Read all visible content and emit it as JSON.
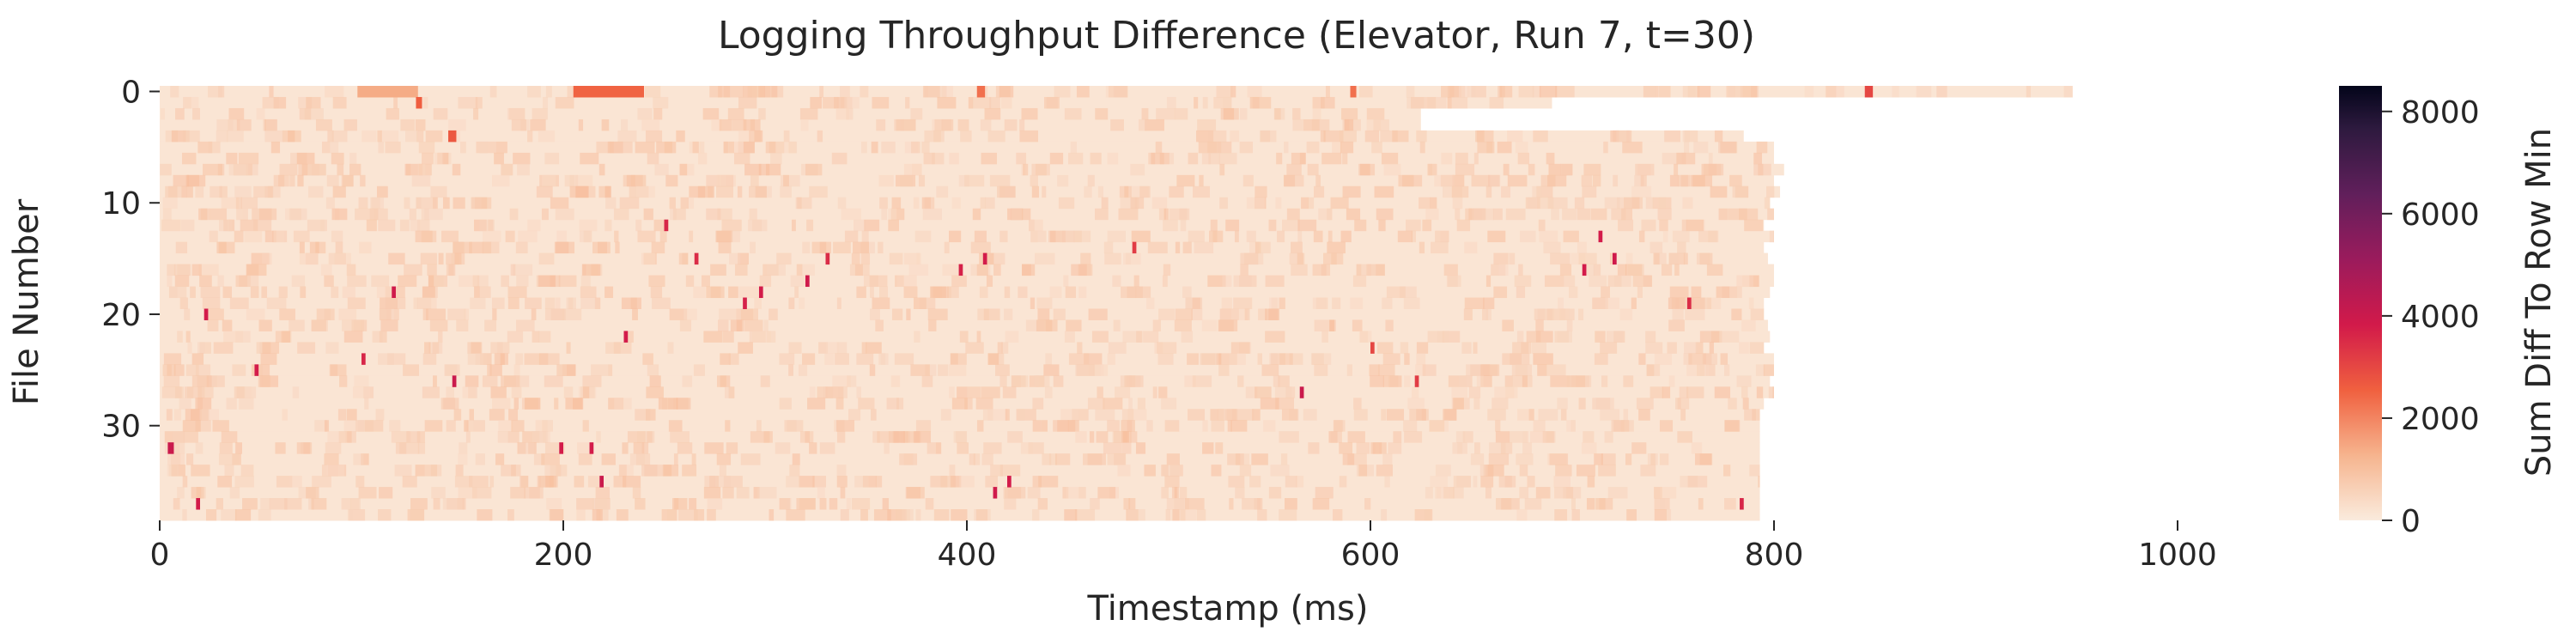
{
  "chart_data": {
    "type": "heatmap",
    "title": "Logging Throughput Difference (Elevator, Run 7, t=30)",
    "xlabel": "Timestamp (ms)",
    "ylabel": "File Number",
    "colorbar_label": "Sum Diff To Row Min",
    "xlim": [
      0,
      1000
    ],
    "ylim": [
      0,
      39
    ],
    "x_ticks": [
      0,
      200,
      400,
      600,
      800,
      1000
    ],
    "y_ticks": [
      0,
      10,
      20,
      30
    ],
    "color_range": [
      0,
      8500
    ],
    "colorbar_ticks": [
      0,
      2000,
      4000,
      6000,
      8000
    ],
    "n_rows": 39,
    "baseline_value": 150,
    "row_end_ms": [
      948,
      690,
      625,
      625,
      785,
      800,
      800,
      805,
      800,
      803,
      798,
      800,
      795,
      800,
      795,
      797,
      800,
      800,
      798,
      795,
      795,
      797,
      798,
      795,
      800,
      800,
      798,
      800,
      795,
      793,
      793,
      793,
      793,
      793,
      793,
      793,
      793,
      793,
      793
    ],
    "hotspots": [
      {
        "row": 0,
        "x_start": 98,
        "x_end": 128,
        "value": 1400
      },
      {
        "row": 0,
        "x_start": 205,
        "x_end": 240,
        "value": 2500
      },
      {
        "row": 0,
        "x_start": 405,
        "x_end": 409,
        "value": 2300
      },
      {
        "row": 0,
        "x_start": 590,
        "x_end": 593,
        "value": 2300
      },
      {
        "row": 0,
        "x_start": 845,
        "x_end": 849,
        "value": 3000
      },
      {
        "row": 1,
        "x_start": 127,
        "x_end": 130,
        "value": 2600
      },
      {
        "row": 4,
        "x_start": 143,
        "x_end": 147,
        "value": 2700
      },
      {
        "row": 12,
        "x_start": 250,
        "x_end": 252,
        "value": 3600
      },
      {
        "row": 13,
        "x_start": 713,
        "x_end": 715,
        "value": 3800
      },
      {
        "row": 15,
        "x_start": 408,
        "x_end": 410,
        "value": 3800
      },
      {
        "row": 15,
        "x_start": 720,
        "x_end": 722,
        "value": 3900
      },
      {
        "row": 15,
        "x_start": 265,
        "x_end": 267,
        "value": 3500
      },
      {
        "row": 15,
        "x_start": 330,
        "x_end": 332,
        "value": 3500
      },
      {
        "row": 16,
        "x_start": 396,
        "x_end": 398,
        "value": 3700
      },
      {
        "row": 16,
        "x_start": 705,
        "x_end": 707,
        "value": 3800
      },
      {
        "row": 17,
        "x_start": 320,
        "x_end": 322,
        "value": 3900
      },
      {
        "row": 18,
        "x_start": 115,
        "x_end": 117,
        "value": 3900
      },
      {
        "row": 18,
        "x_start": 297,
        "x_end": 299,
        "value": 3800
      },
      {
        "row": 19,
        "x_start": 289,
        "x_end": 291,
        "value": 3700
      },
      {
        "row": 19,
        "x_start": 757,
        "x_end": 759,
        "value": 3500
      },
      {
        "row": 20,
        "x_start": 22,
        "x_end": 24,
        "value": 3800
      },
      {
        "row": 22,
        "x_start": 230,
        "x_end": 232,
        "value": 3800
      },
      {
        "row": 24,
        "x_start": 100,
        "x_end": 102,
        "value": 3600
      },
      {
        "row": 25,
        "x_start": 47,
        "x_end": 49,
        "value": 3800
      },
      {
        "row": 26,
        "x_start": 145,
        "x_end": 147,
        "value": 4000
      },
      {
        "row": 27,
        "x_start": 565,
        "x_end": 567,
        "value": 4000
      },
      {
        "row": 32,
        "x_start": 4,
        "x_end": 7,
        "value": 4000
      },
      {
        "row": 32,
        "x_start": 198,
        "x_end": 200,
        "value": 3800
      },
      {
        "row": 32,
        "x_start": 213,
        "x_end": 215,
        "value": 3800
      },
      {
        "row": 35,
        "x_start": 218,
        "x_end": 220,
        "value": 4000
      },
      {
        "row": 35,
        "x_start": 420,
        "x_end": 422,
        "value": 3800
      },
      {
        "row": 36,
        "x_start": 413,
        "x_end": 415,
        "value": 3900
      },
      {
        "row": 37,
        "x_start": 18,
        "x_end": 20,
        "value": 3800
      },
      {
        "row": 37,
        "x_start": 783,
        "x_end": 785,
        "value": 3600
      },
      {
        "row": 14,
        "x_start": 482,
        "x_end": 484,
        "value": 3200
      },
      {
        "row": 23,
        "x_start": 600,
        "x_end": 602,
        "value": 3000
      },
      {
        "row": 26,
        "x_start": 622,
        "x_end": 624,
        "value": 3200
      }
    ]
  }
}
